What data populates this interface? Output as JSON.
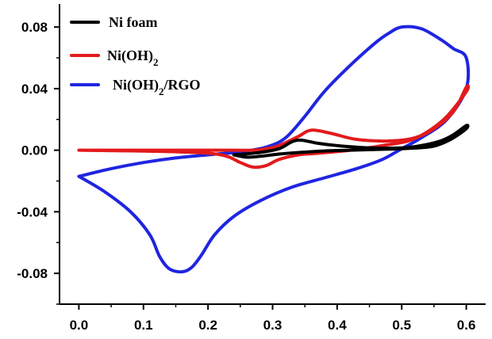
{
  "chart_data": {
    "type": "line",
    "title": "",
    "xlabel": "",
    "ylabel": "",
    "xlim": [
      -0.03,
      0.63
    ],
    "ylim": [
      -0.1,
      0.095
    ],
    "x_ticks": [
      "0.0",
      "0.1",
      "0.2",
      "0.3",
      "0.4",
      "0.5",
      "0.6"
    ],
    "y_ticks": [
      "0.08",
      "0.04",
      "0.00",
      "-0.04",
      "-0.08"
    ],
    "y_tick_values": [
      0.08,
      0.04,
      0.0,
      -0.04,
      -0.08
    ],
    "grid": false,
    "legend_position": "top-left",
    "series": [
      {
        "name": "Ni  foam",
        "legend_main": "Ni  foam",
        "legend_sub": "",
        "legend_tail": "",
        "color": "#000000",
        "x": [
          0.24,
          0.28,
          0.31,
          0.33,
          0.345,
          0.37,
          0.4,
          0.45,
          0.5,
          0.53,
          0.56,
          0.58,
          0.6,
          0.6,
          0.58,
          0.56,
          0.54,
          0.5,
          0.46,
          0.42,
          0.38,
          0.34,
          0.31,
          0.28,
          0.26,
          0.24
        ],
        "y": [
          -0.003,
          -0.0015,
          0.001,
          0.0055,
          0.0065,
          0.0045,
          0.003,
          0.0015,
          0.0015,
          0.003,
          0.006,
          0.01,
          0.016,
          0.014,
          0.008,
          0.004,
          0.002,
          0.001,
          0.0005,
          0.0,
          -0.0005,
          -0.0015,
          -0.0025,
          -0.004,
          -0.0045,
          -0.003
        ]
      },
      {
        "name": "Ni(OH)2",
        "legend_main": "Ni(OH)",
        "legend_sub": "2",
        "legend_tail": "",
        "color": "#e31a1c",
        "x": [
          0.0,
          0.1,
          0.2,
          0.24,
          0.27,
          0.29,
          0.31,
          0.34,
          0.36,
          0.39,
          0.43,
          0.48,
          0.52,
          0.55,
          0.58,
          0.6,
          0.6,
          0.57,
          0.54,
          0.51,
          0.47,
          0.42,
          0.37,
          0.34,
          0.31,
          0.29,
          0.27,
          0.25,
          0.22,
          0.15,
          0.0
        ],
        "y": [
          0.0,
          0.0,
          0.0,
          0.0,
          0.0,
          0.001,
          0.003,
          0.009,
          0.013,
          0.011,
          0.007,
          0.006,
          0.008,
          0.014,
          0.025,
          0.041,
          0.038,
          0.022,
          0.012,
          0.006,
          0.003,
          0.0,
          -0.002,
          -0.003,
          -0.006,
          -0.01,
          -0.011,
          -0.008,
          -0.003,
          -0.001,
          0.0
        ]
      },
      {
        "name": "Ni(OH)2/RGO",
        "legend_main": "Ni(OH)",
        "legend_sub": "2",
        "legend_tail": "/RGO",
        "color": "#1f25e0",
        "x": [
          0.0,
          0.05,
          0.1,
          0.15,
          0.2,
          0.25,
          0.29,
          0.32,
          0.35,
          0.38,
          0.42,
          0.46,
          0.48,
          0.5,
          0.53,
          0.56,
          0.58,
          0.6,
          0.6,
          0.57,
          0.53,
          0.5,
          0.47,
          0.43,
          0.38,
          0.33,
          0.28,
          0.24,
          0.21,
          0.19,
          0.175,
          0.16,
          0.14,
          0.125,
          0.11,
          0.08,
          0.04,
          0.0
        ],
        "y": [
          -0.017,
          -0.012,
          -0.008,
          -0.005,
          -0.003,
          -0.001,
          0.002,
          0.008,
          0.022,
          0.038,
          0.055,
          0.07,
          0.076,
          0.08,
          0.079,
          0.072,
          0.066,
          0.06,
          0.04,
          0.02,
          0.008,
          0.001,
          -0.006,
          -0.012,
          -0.018,
          -0.024,
          -0.033,
          -0.043,
          -0.055,
          -0.068,
          -0.076,
          -0.079,
          -0.077,
          -0.069,
          -0.055,
          -0.04,
          -0.027,
          -0.017
        ]
      }
    ]
  }
}
